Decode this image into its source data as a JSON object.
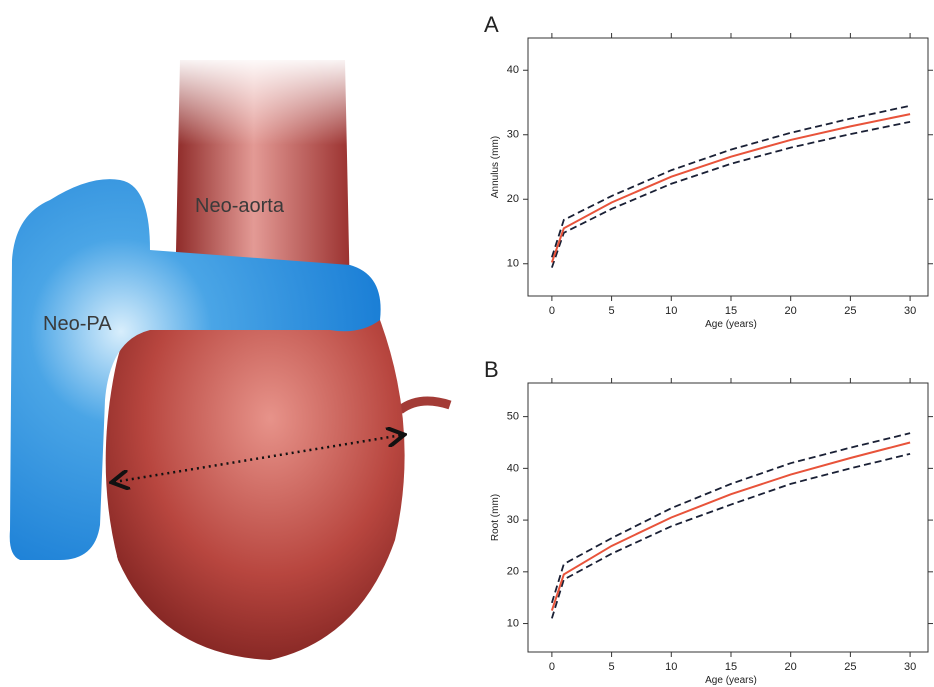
{
  "illustration": {
    "labels": [
      "Neo-aorta",
      "Neo-PA"
    ]
  },
  "chart_data": [
    {
      "type": "line",
      "panel": "A",
      "ylabel": "Annulus (mm)",
      "xlabel": "Age (years)",
      "x": [
        0,
        1,
        5,
        10,
        15,
        20,
        25,
        30
      ],
      "series": [
        {
          "color": "#1a2035",
          "dash": true,
          "values": [
            11,
            16.8,
            20.5,
            24.5,
            27.7,
            30.3,
            32.5,
            34.5
          ]
        },
        {
          "color": "#1a2035",
          "dash": true,
          "values": [
            9.4,
            14.8,
            18.5,
            22.4,
            25.5,
            28,
            30.1,
            32
          ]
        },
        {
          "color": "#e8533a",
          "dash": false,
          "values": [
            10.2,
            15.5,
            19.5,
            23.5,
            26.6,
            29.2,
            31.3,
            33.2
          ]
        }
      ],
      "xlim": [
        -2,
        31.5
      ],
      "ylim": [
        5,
        45
      ],
      "xticks": [
        0,
        5,
        10,
        15,
        20,
        25,
        30
      ],
      "yticks": [
        10,
        20,
        30,
        40
      ]
    },
    {
      "type": "line",
      "panel": "B",
      "ylabel": "Root (mm)",
      "xlabel": "Age (years)",
      "x": [
        0,
        1,
        5,
        10,
        15,
        20,
        25,
        30
      ],
      "series": [
        {
          "color": "#1a2035",
          "dash": true,
          "values": [
            14,
            21.5,
            26.5,
            32.3,
            37,
            41,
            44,
            46.8
          ]
        },
        {
          "color": "#1a2035",
          "dash": true,
          "values": [
            11,
            18.5,
            23.5,
            28.8,
            33,
            37,
            40,
            42.8
          ]
        },
        {
          "color": "#e8533a",
          "dash": false,
          "values": [
            12.5,
            19.5,
            25,
            30.5,
            35,
            38.8,
            42,
            45
          ]
        }
      ],
      "xlim": [
        -2,
        31.5
      ],
      "ylim": [
        4.5,
        56.5
      ],
      "xticks": [
        0,
        5,
        10,
        15,
        20,
        25,
        30
      ],
      "yticks": [
        10,
        20,
        30,
        40,
        50
      ]
    }
  ]
}
